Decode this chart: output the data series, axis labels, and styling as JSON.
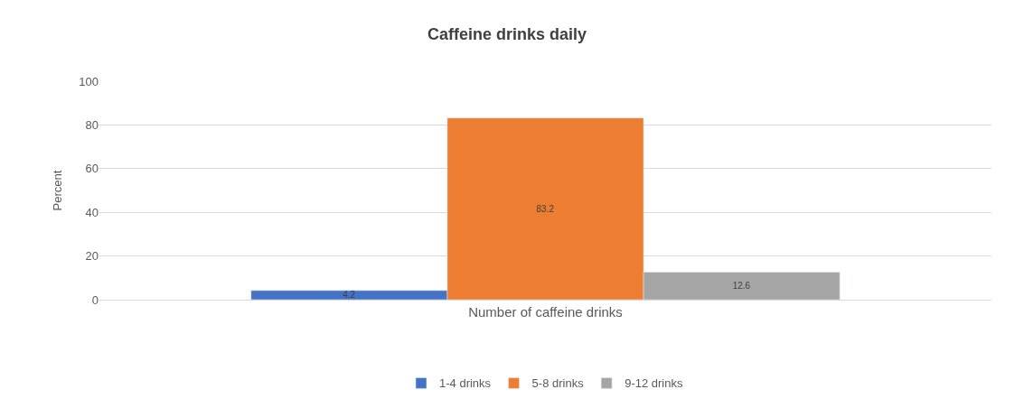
{
  "chart_data": {
    "type": "bar",
    "title": "Caffeine drinks daily",
    "ylabel": "Percent",
    "categories": [
      "Number of caffeine drinks"
    ],
    "series": [
      {
        "name": "1-4 drinks",
        "color": "#4472c4",
        "values": [
          4.2
        ]
      },
      {
        "name": "5-8 drinks",
        "color": "#ed7d31",
        "values": [
          83.2
        ]
      },
      {
        "name": "9-12 drinks",
        "color": "#a5a5a5",
        "values": [
          12.6
        ]
      }
    ],
    "ylim": [
      0,
      100
    ],
    "yticks": [
      0,
      20,
      40,
      60,
      80,
      100
    ],
    "grid": "y",
    "legend": "bottom",
    "data_labels": true
  }
}
